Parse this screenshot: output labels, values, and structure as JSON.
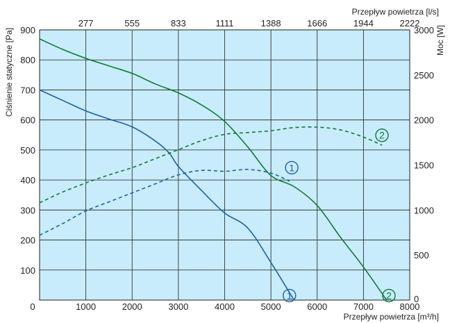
{
  "colors": {
    "plot_bg": "#c8ecfb",
    "grid": "#1e1e1e",
    "series_1": "#1d5fa8",
    "series_2": "#0f7a34"
  },
  "chart_data": {
    "type": "line",
    "title": "",
    "xlabel_bottom": "Przepływ powietrza [m³/h]",
    "xlabel_top": "Przepływ powietrza [l/s]",
    "ylabel_left": "Ciśnienie statyczne [Pa]",
    "ylabel_right": "Moc [W]",
    "xlim": [
      0,
      8000
    ],
    "ylim_left": [
      0,
      900
    ],
    "ylim_right": [
      0,
      3000
    ],
    "grid": true,
    "x_ticks_bottom": [
      "0",
      "1000",
      "2000",
      "3000",
      "4000",
      "5000",
      "6000",
      "7000",
      "8000"
    ],
    "x_ticks_top": [
      "277",
      "555",
      "833",
      "1111",
      "1388",
      "1666",
      "1944",
      "2222"
    ],
    "y_ticks_left": [
      "100",
      "200",
      "300",
      "400",
      "500",
      "600",
      "700",
      "800",
      "900"
    ],
    "y_ticks_right": [
      "0",
      "500",
      "1000",
      "1500",
      "2000",
      "2500",
      "3000"
    ],
    "series": [
      {
        "name": "1",
        "axis": "left",
        "style": "solid",
        "color": "#1d5fa8",
        "points": [
          [
            0,
            700
          ],
          [
            500,
            665
          ],
          [
            1000,
            630
          ],
          [
            1500,
            603
          ],
          [
            2000,
            577
          ],
          [
            2500,
            530
          ],
          [
            2800,
            490
          ],
          [
            3000,
            445
          ],
          [
            3500,
            365
          ],
          [
            4000,
            290
          ],
          [
            4500,
            240
          ],
          [
            5000,
            125
          ],
          [
            5500,
            0
          ]
        ]
      },
      {
        "name": "2",
        "axis": "left",
        "style": "solid",
        "color": "#0f7a34",
        "points": [
          [
            0,
            870
          ],
          [
            500,
            835
          ],
          [
            1000,
            805
          ],
          [
            1500,
            780
          ],
          [
            2000,
            755
          ],
          [
            2500,
            720
          ],
          [
            3000,
            690
          ],
          [
            3500,
            650
          ],
          [
            4000,
            595
          ],
          [
            4500,
            510
          ],
          [
            5000,
            415
          ],
          [
            5500,
            378
          ],
          [
            6000,
            315
          ],
          [
            6500,
            210
          ],
          [
            7000,
            110
          ],
          [
            7500,
            0
          ]
        ]
      },
      {
        "name": "1",
        "axis": "right",
        "style": "dashed",
        "color": "#1d5fa8",
        "points": [
          [
            0,
            720
          ],
          [
            500,
            850
          ],
          [
            1000,
            990
          ],
          [
            1500,
            1090
          ],
          [
            2000,
            1190
          ],
          [
            2500,
            1290
          ],
          [
            3000,
            1390
          ],
          [
            3500,
            1440
          ],
          [
            4000,
            1430
          ],
          [
            4500,
            1450
          ],
          [
            5000,
            1410
          ],
          [
            5400,
            1320
          ]
        ]
      },
      {
        "name": "2",
        "axis": "right",
        "style": "dashed",
        "color": "#0f7a34",
        "points": [
          [
            0,
            1080
          ],
          [
            500,
            1200
          ],
          [
            1000,
            1300
          ],
          [
            1500,
            1390
          ],
          [
            2000,
            1470
          ],
          [
            2500,
            1570
          ],
          [
            3000,
            1670
          ],
          [
            3500,
            1770
          ],
          [
            4000,
            1840
          ],
          [
            4500,
            1860
          ],
          [
            5000,
            1880
          ],
          [
            5500,
            1915
          ],
          [
            6000,
            1920
          ],
          [
            6500,
            1890
          ],
          [
            7000,
            1810
          ],
          [
            7400,
            1720
          ]
        ]
      }
    ],
    "labels": [
      {
        "text": "1",
        "color": "#1d5fa8",
        "x": 5400,
        "y_left": 15
      },
      {
        "text": "2",
        "color": "#0f7a34",
        "x": 7550,
        "y_left": 15
      },
      {
        "text": "1",
        "color": "#1d5fa8",
        "x": 5450,
        "y_right": 1470
      },
      {
        "text": "2",
        "color": "#0f7a34",
        "x": 7400,
        "y_right": 1830
      }
    ]
  }
}
